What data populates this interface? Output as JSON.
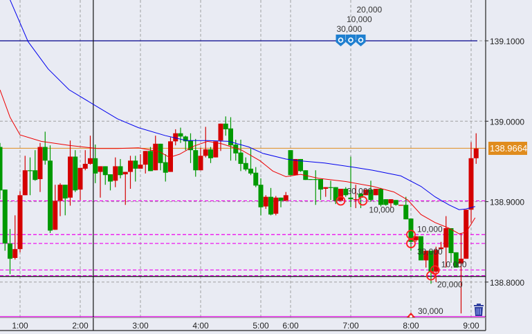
{
  "chart_data": {
    "type": "candlestick",
    "title": "",
    "xlabel": "",
    "ylabel": "",
    "ylim": [
      138.755,
      139.151
    ],
    "grid": true,
    "bull_color": "#d40000",
    "bear_color": "#009900",
    "x_tick_labels": [
      "1:00",
      "2:00",
      "3:00",
      "4:00",
      "5:00",
      "6:00",
      "7:00",
      "8:00",
      "9:00"
    ],
    "y_tick_labels": [
      "139.1000",
      "139.0000",
      "138.9000",
      "138.8000"
    ],
    "y_ticks": [
      139.1,
      139.0,
      138.9,
      138.8
    ],
    "current_price": {
      "value": 138.9664,
      "label": "138.9664",
      "color": "#e08c1e"
    },
    "candles_columns": [
      "time",
      "open",
      "high",
      "low",
      "close"
    ],
    "candles": [
      [
        "0:40",
        138.968,
        138.973,
        138.903,
        138.914
      ],
      [
        "0:45",
        138.915,
        138.915,
        138.839,
        138.848
      ],
      [
        "0:50",
        138.848,
        138.866,
        138.81,
        138.829
      ],
      [
        "0:55",
        138.83,
        138.883,
        138.828,
        138.841
      ],
      [
        "1:00",
        138.841,
        138.913,
        138.837,
        138.908
      ],
      [
        "1:05",
        138.908,
        138.957,
        138.908,
        138.939
      ],
      [
        "1:10",
        138.939,
        138.955,
        138.908,
        138.938
      ],
      [
        "1:15",
        138.939,
        138.964,
        138.926,
        138.927
      ],
      [
        "1:20",
        138.928,
        138.973,
        138.912,
        138.968
      ],
      [
        "1:25",
        138.968,
        138.987,
        138.946,
        138.951
      ],
      [
        "1:30",
        138.951,
        138.97,
        138.861,
        138.864
      ],
      [
        "1:35",
        138.865,
        138.921,
        138.865,
        138.901
      ],
      [
        "1:40",
        138.901,
        138.923,
        138.882,
        138.921
      ],
      [
        "1:45",
        138.921,
        138.921,
        138.883,
        138.904
      ],
      [
        "1:50",
        138.905,
        138.976,
        138.895,
        138.956
      ],
      [
        "1:55",
        138.956,
        138.964,
        138.912,
        138.914
      ],
      [
        "2:00",
        138.915,
        138.942,
        138.902,
        138.942
      ],
      [
        "2:05",
        138.941,
        138.964,
        138.939,
        138.947
      ],
      [
        "2:10",
        138.947,
        138.982,
        138.946,
        138.954
      ],
      [
        "2:15",
        138.954,
        138.971,
        138.923,
        138.935
      ],
      [
        "2:20",
        138.937,
        138.944,
        138.905,
        138.944
      ],
      [
        "2:25",
        138.944,
        138.944,
        138.921,
        138.933
      ],
      [
        "2:30",
        138.934,
        138.934,
        138.914,
        138.925
      ],
      [
        "2:35",
        138.926,
        138.955,
        138.918,
        138.944
      ],
      [
        "2:40",
        138.944,
        138.953,
        138.929,
        138.933
      ],
      [
        "2:45",
        138.934,
        138.937,
        138.896,
        138.937
      ],
      [
        "2:50",
        138.937,
        138.957,
        138.916,
        138.951
      ],
      [
        "2:55",
        138.951,
        138.957,
        138.925,
        138.941
      ],
      [
        "3:00",
        138.941,
        138.959,
        138.941,
        138.946
      ],
      [
        "3:05",
        138.946,
        138.963,
        138.935,
        138.963
      ],
      [
        "3:10",
        138.963,
        138.968,
        138.938,
        138.938
      ],
      [
        "3:15",
        138.939,
        138.982,
        138.939,
        138.972
      ],
      [
        "3:20",
        138.972,
        138.972,
        138.939,
        138.948
      ],
      [
        "3:25",
        138.949,
        138.959,
        138.925,
        138.936
      ],
      [
        "3:30",
        138.937,
        138.98,
        138.937,
        138.975
      ],
      [
        "3:35",
        138.975,
        138.99,
        138.97,
        138.985
      ],
      [
        "3:40",
        138.985,
        138.992,
        138.973,
        138.981
      ],
      [
        "3:45",
        138.981,
        138.982,
        138.964,
        138.975
      ],
      [
        "3:50",
        138.976,
        138.985,
        138.948,
        138.964
      ],
      [
        "3:55",
        138.964,
        138.978,
        138.931,
        138.939
      ],
      [
        "4:00",
        138.939,
        138.967,
        138.939,
        138.957
      ],
      [
        "4:05",
        138.957,
        138.993,
        138.955,
        138.965
      ],
      [
        "4:10",
        138.965,
        138.968,
        138.948,
        138.954
      ],
      [
        "4:15",
        138.955,
        138.975,
        138.955,
        138.975
      ],
      [
        "4:20",
        138.976,
        138.997,
        138.963,
        138.997
      ],
      [
        "4:25",
        138.997,
        139.006,
        138.982,
        138.99
      ],
      [
        "4:30",
        138.991,
        139.005,
        138.951,
        138.97
      ],
      [
        "4:35",
        138.971,
        138.977,
        138.951,
        138.96
      ],
      [
        "4:40",
        138.961,
        138.977,
        138.938,
        138.947
      ],
      [
        "4:45",
        138.948,
        138.955,
        138.938,
        138.94
      ],
      [
        "4:50",
        138.941,
        138.966,
        138.933,
        138.935
      ],
      [
        "4:55",
        138.936,
        138.943,
        138.918,
        138.92
      ],
      [
        "5:00",
        138.921,
        138.929,
        138.883,
        138.893
      ],
      [
        "5:05",
        138.894,
        138.908,
        138.891,
        138.906
      ],
      [
        "5:10",
        138.906,
        138.917,
        138.883,
        138.884
      ],
      [
        "5:15",
        138.885,
        138.907,
        138.883,
        138.905
      ],
      [
        "5:20",
        138.905,
        138.905,
        138.893,
        138.901
      ],
      [
        "5:25",
        138.901,
        138.912,
        138.901,
        138.908
      ],
      [
        "6:00",
        138.964,
        138.964,
        138.933,
        138.933
      ],
      [
        "6:05",
        138.933,
        138.953,
        138.933,
        138.953
      ],
      [
        "6:10",
        138.953,
        138.953,
        138.937,
        138.938
      ],
      [
        "6:15",
        138.939,
        138.939,
        138.927,
        138.927
      ],
      [
        "6:20",
        138.928,
        138.928,
        138.927,
        138.927
      ],
      [
        "6:25",
        138.928,
        138.939,
        138.896,
        138.927
      ],
      [
        "6:30",
        138.928,
        138.928,
        138.902,
        138.915
      ],
      [
        "6:35",
        138.916,
        138.918,
        138.906,
        138.918
      ],
      [
        "6:40",
        138.918,
        138.926,
        138.902,
        138.917
      ],
      [
        "6:45",
        138.918,
        138.918,
        138.897,
        138.901
      ],
      [
        "6:50",
        138.901,
        138.916,
        138.901,
        138.916
      ],
      [
        "6:55",
        138.916,
        138.918,
        138.906,
        138.908
      ],
      [
        "7:00",
        138.905,
        138.956,
        138.893,
        138.903
      ],
      [
        "7:05",
        138.902,
        138.921,
        138.892,
        138.903
      ],
      [
        "7:10",
        138.91,
        138.91,
        138.892,
        138.905
      ],
      [
        "7:15",
        138.908,
        138.915,
        138.908,
        138.915
      ],
      [
        "7:20",
        138.915,
        138.926,
        138.9,
        138.902
      ],
      [
        "7:25",
        138.908,
        138.916,
        138.908,
        138.916
      ],
      [
        "7:30",
        138.916,
        138.917,
        138.894,
        138.896
      ],
      [
        "7:35",
        138.903,
        138.903,
        138.895,
        138.896
      ],
      [
        "7:40",
        138.898,
        138.903,
        138.893,
        138.903
      ],
      [
        "7:45",
        138.902,
        138.902,
        138.895,
        138.896
      ],
      [
        "7:50",
        138.895,
        138.896,
        138.895,
        138.896
      ],
      [
        "7:55",
        138.896,
        138.906,
        138.878,
        138.878
      ],
      [
        "8:00",
        138.879,
        138.879,
        138.839,
        138.85
      ],
      [
        "8:05",
        138.852,
        138.857,
        138.85,
        138.857
      ],
      [
        "8:10",
        138.857,
        138.857,
        138.827,
        138.827
      ],
      [
        "8:15",
        138.827,
        138.839,
        138.818,
        138.839
      ],
      [
        "8:20",
        138.839,
        138.839,
        138.798,
        138.813
      ],
      [
        "8:25",
        138.813,
        138.844,
        138.8,
        138.84
      ],
      [
        "8:30",
        138.841,
        138.85,
        138.841,
        138.843
      ],
      [
        "8:35",
        138.843,
        138.882,
        138.818,
        138.867
      ],
      [
        "8:40",
        138.867,
        138.867,
        138.824,
        138.836
      ],
      [
        "8:45",
        138.837,
        138.837,
        138.818,
        138.818
      ],
      [
        "8:50",
        138.823,
        138.861,
        138.761,
        138.829
      ],
      [
        "8:55",
        138.829,
        138.89,
        138.829,
        138.89
      ],
      [
        "9:00",
        138.89,
        138.974,
        138.874,
        138.954
      ],
      [
        "9:05",
        138.954,
        138.985,
        138.947,
        138.966
      ]
    ],
    "moving_averages": [
      {
        "color": "#0000ee",
        "points": [
          [
            "0:50",
            139.151
          ],
          [
            "1:08",
            139.099
          ],
          [
            "1:28",
            139.065
          ],
          [
            "1:49",
            139.039
          ],
          [
            "2:17",
            139.018
          ],
          [
            "2:37",
            139.003
          ],
          [
            "2:58",
            138.992
          ],
          [
            "3:25",
            138.982
          ],
          [
            "3:46",
            138.976
          ],
          [
            "4:07",
            138.976
          ],
          [
            "4:28",
            138.975
          ],
          [
            "4:48",
            138.968
          ],
          [
            "5:02",
            138.96
          ],
          [
            "5:25",
            138.953
          ],
          [
            "6:07",
            138.951
          ],
          [
            "6:34",
            138.948
          ],
          [
            "7:02",
            138.943
          ],
          [
            "7:22",
            138.939
          ],
          [
            "7:50",
            138.932
          ],
          [
            "8:10",
            138.919
          ],
          [
            "8:24",
            138.906
          ],
          [
            "8:38",
            138.896
          ],
          [
            "8:48",
            138.89
          ],
          [
            "8:55",
            138.891
          ],
          [
            "9:04",
            138.894
          ]
        ]
      },
      {
        "color": "#ee0000",
        "points": [
          [
            "0:40",
            139.039
          ],
          [
            "0:50",
            139.005
          ],
          [
            "1:00",
            138.983
          ],
          [
            "1:21",
            138.975
          ],
          [
            "1:49",
            138.97
          ],
          [
            "2:17",
            138.966
          ],
          [
            "2:37",
            138.966
          ],
          [
            "2:58",
            138.967
          ],
          [
            "3:19",
            138.962
          ],
          [
            "3:29",
            138.955
          ],
          [
            "3:39",
            138.959
          ],
          [
            "3:53",
            138.969
          ],
          [
            "4:07",
            138.975
          ],
          [
            "4:21",
            138.972
          ],
          [
            "4:41",
            138.964
          ],
          [
            "4:59",
            138.951
          ],
          [
            "5:12",
            138.938
          ],
          [
            "5:25",
            138.931
          ],
          [
            "6:00",
            138.932
          ],
          [
            "6:10",
            138.934
          ],
          [
            "6:28",
            138.929
          ],
          [
            "6:55",
            138.925
          ],
          [
            "7:22",
            138.919
          ],
          [
            "7:43",
            138.912
          ],
          [
            "7:57",
            138.902
          ],
          [
            "8:10",
            138.884
          ],
          [
            "8:24",
            138.874
          ],
          [
            "8:38",
            138.867
          ],
          [
            "8:48",
            138.86
          ],
          [
            "8:55",
            138.862
          ],
          [
            "9:04",
            138.88
          ]
        ]
      }
    ],
    "order_lines": [
      {
        "price": 139.1,
        "style": "solid",
        "color": "#00008b"
      },
      {
        "price": 138.901,
        "style": "dashed",
        "color": "#ee00ee"
      },
      {
        "price": 138.859,
        "style": "dashed",
        "color": "#ee00ee"
      },
      {
        "price": 138.848,
        "style": "dashed",
        "color": "#ee00ee"
      },
      {
        "price": 138.815,
        "style": "dashed",
        "color": "#ee00ee"
      },
      {
        "price": 138.808,
        "style": "dashed",
        "color": "#ee00ee"
      },
      {
        "price": 138.807,
        "style": "solid",
        "color": "#111111"
      },
      {
        "price": 138.757,
        "style": "solid",
        "color": "#dd00dd"
      }
    ],
    "crosshair_time": "2:13",
    "order_pins": [
      {
        "time": "6:50",
        "price": 139.1,
        "label": "30,000"
      },
      {
        "time": "7:00",
        "price": 139.1,
        "label": "10,000"
      },
      {
        "time": "7:10",
        "price": 139.1,
        "label": "20,000"
      }
    ],
    "executions": [
      {
        "time": "6:50",
        "price": 138.901,
        "label": "30,000"
      },
      {
        "time": "7:12",
        "price": 138.901,
        "label": "10,000"
      },
      {
        "time": "8:00",
        "price": 138.859,
        "label": "10,000"
      },
      {
        "time": "8:00",
        "price": 138.848,
        "label": "30,000"
      },
      {
        "time": "8:20",
        "price": 138.808,
        "label": "20,000"
      },
      {
        "time": "8:24",
        "price": 138.815,
        "label": "10,000"
      }
    ],
    "stop_pin": {
      "time": "8:00",
      "price": 138.757,
      "label": "30,000"
    }
  },
  "toolbar": {
    "delete_icon": "trash-icon"
  }
}
